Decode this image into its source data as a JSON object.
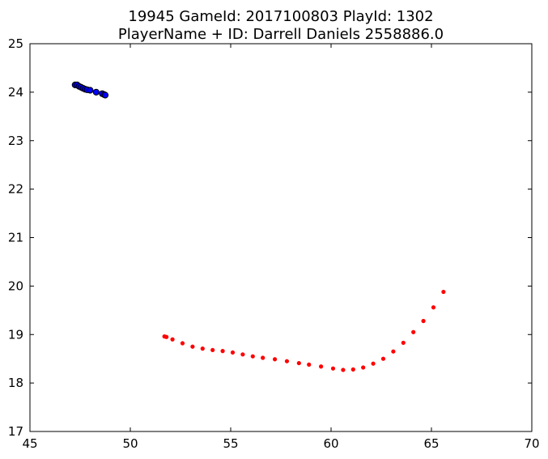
{
  "chart_data": {
    "type": "scatter",
    "title_line1": "19945 GameId: 2017100803 PlayId: 1302",
    "title_line2": "PlayerName + ID: Darrell Daniels 2558886.0",
    "xlabel": "",
    "ylabel": "",
    "xlim": [
      45,
      70
    ],
    "ylim": [
      17,
      25
    ],
    "x_ticks": [
      "45",
      "50",
      "55",
      "60",
      "65",
      "70"
    ],
    "y_ticks": [
      "17",
      "18",
      "19",
      "20",
      "21",
      "22",
      "23",
      "24",
      "25"
    ],
    "grid": false,
    "series": [
      {
        "color": "#0000ff",
        "edge_color": "#000000",
        "marker": "circle-large",
        "points": [
          [
            47.25,
            24.15
          ],
          [
            47.35,
            24.15
          ],
          [
            47.45,
            24.12
          ],
          [
            47.55,
            24.1
          ],
          [
            47.65,
            24.08
          ],
          [
            47.75,
            24.06
          ],
          [
            47.85,
            24.05
          ],
          [
            48.0,
            24.04
          ],
          [
            48.3,
            24.0
          ],
          [
            48.6,
            23.97
          ],
          [
            48.7,
            23.95
          ],
          [
            48.75,
            23.94
          ]
        ]
      },
      {
        "color": "#ff0000",
        "edge_color": "#ff0000",
        "marker": "circle-small",
        "points": [
          [
            51.7,
            18.96
          ],
          [
            51.8,
            18.95
          ],
          [
            52.1,
            18.9
          ],
          [
            52.6,
            18.82
          ],
          [
            53.1,
            18.75
          ],
          [
            53.6,
            18.71
          ],
          [
            54.1,
            18.68
          ],
          [
            54.6,
            18.66
          ],
          [
            55.1,
            18.63
          ],
          [
            55.6,
            18.59
          ],
          [
            56.1,
            18.55
          ],
          [
            56.6,
            18.52
          ],
          [
            57.2,
            18.49
          ],
          [
            57.8,
            18.45
          ],
          [
            58.4,
            18.41
          ],
          [
            58.9,
            18.38
          ],
          [
            59.5,
            18.34
          ],
          [
            60.1,
            18.3
          ],
          [
            60.6,
            18.27
          ],
          [
            61.1,
            18.28
          ],
          [
            61.6,
            18.32
          ],
          [
            62.1,
            18.4
          ],
          [
            62.6,
            18.5
          ],
          [
            63.1,
            18.65
          ],
          [
            63.6,
            18.83
          ],
          [
            64.1,
            19.05
          ],
          [
            64.6,
            19.28
          ],
          [
            65.1,
            19.56
          ],
          [
            65.6,
            19.88
          ]
        ]
      }
    ]
  }
}
